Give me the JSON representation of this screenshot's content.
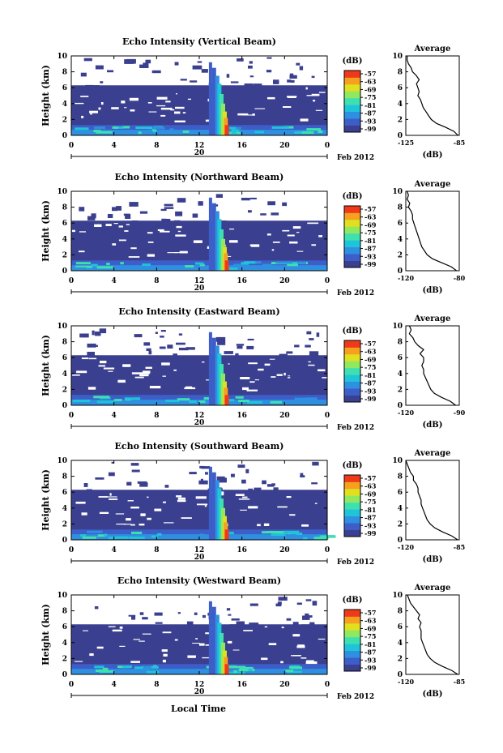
{
  "figure": {
    "date_label": "Feb 2012",
    "xlabel": "Local Time",
    "colors": {
      "background": "#3a3f8f",
      "ramp": [
        "#3a3f8f",
        "#3d5ec8",
        "#2f8fe0",
        "#1fc4d8",
        "#3fe0b0",
        "#8fe860",
        "#e0e020",
        "#f6a020",
        "#ef3a1a"
      ]
    }
  },
  "chart_data": [
    {
      "type": "heatmap",
      "title": "Echo Intensity (Vertical Beam)",
      "ylabel": "Height (km)",
      "xlim": [
        0,
        24
      ],
      "ylim": [
        0,
        10
      ],
      "xticks": [
        "0",
        "4",
        "8",
        "12",
        "16",
        "20",
        "0"
      ],
      "yticks": [
        "0",
        "2",
        "4",
        "6",
        "8",
        "10"
      ],
      "day_label": "20",
      "colorbar": {
        "unit": "(dB)",
        "ticks": [
          "-57",
          "-63",
          "-69",
          "-75",
          "-81",
          "-87",
          "-93",
          "-99"
        ]
      },
      "profile": {
        "title": "Average",
        "xlabel": "(dB)",
        "xlim": [
          -125,
          -85
        ],
        "xticks": [
          "-125",
          "-85"
        ],
        "yticks": [
          "0",
          "2",
          "4",
          "6",
          "8",
          "10"
        ],
        "points": [
          [
            -86,
            0
          ],
          [
            -89,
            0.5
          ],
          [
            -95,
            1
          ],
          [
            -102,
            1.5
          ],
          [
            -106,
            2
          ],
          [
            -108,
            2.5
          ],
          [
            -110,
            3
          ],
          [
            -112,
            3.5
          ],
          [
            -113,
            4
          ],
          [
            -114,
            4.5
          ],
          [
            -116,
            5
          ],
          [
            -115,
            5.5
          ],
          [
            -116,
            6
          ],
          [
            -117,
            6.5
          ],
          [
            -115,
            7
          ],
          [
            -117,
            7.5
          ],
          [
            -120,
            8
          ],
          [
            -121,
            8.5
          ],
          [
            -123,
            9
          ],
          [
            -124,
            9.5
          ],
          [
            -124,
            10
          ]
        ]
      }
    },
    {
      "type": "heatmap",
      "title": "Echo Intensity (Northward Beam)",
      "ylabel": "Height (km)",
      "xlim": [
        0,
        24
      ],
      "ylim": [
        0,
        10
      ],
      "xticks": [
        "0",
        "4",
        "8",
        "12",
        "16",
        "20",
        "0"
      ],
      "yticks": [
        "0",
        "2",
        "4",
        "6",
        "8",
        "10"
      ],
      "day_label": "20",
      "colorbar": {
        "unit": "(dB)",
        "ticks": [
          "-57",
          "-63",
          "-69",
          "-75",
          "-81",
          "-87",
          "-93",
          "-99"
        ]
      },
      "profile": {
        "title": "Average",
        "xlabel": "(dB)",
        "xlim": [
          -120,
          -80
        ],
        "xticks": [
          "-120",
          "-80"
        ],
        "yticks": [
          "0",
          "2",
          "4",
          "6",
          "8",
          "10"
        ],
        "points": [
          [
            -82,
            0
          ],
          [
            -86,
            0.5
          ],
          [
            -93,
            1
          ],
          [
            -100,
            1.5
          ],
          [
            -104,
            2
          ],
          [
            -106,
            2.5
          ],
          [
            -108,
            3
          ],
          [
            -109,
            3.5
          ],
          [
            -110,
            4
          ],
          [
            -111,
            4.5
          ],
          [
            -112,
            5
          ],
          [
            -113,
            5.5
          ],
          [
            -114,
            6
          ],
          [
            -115,
            6.5
          ],
          [
            -115,
            7
          ],
          [
            -116,
            7.5
          ],
          [
            -118,
            8
          ],
          [
            -117,
            8.5
          ],
          [
            -119,
            9
          ],
          [
            -118,
            9.5
          ],
          [
            -119,
            10
          ]
        ]
      }
    },
    {
      "type": "heatmap",
      "title": "Echo Intensity (Eastward Beam)",
      "ylabel": "Height (km)",
      "xlim": [
        0,
        24
      ],
      "ylim": [
        0,
        10
      ],
      "xticks": [
        "0",
        "4",
        "8",
        "12",
        "16",
        "20",
        "0"
      ],
      "yticks": [
        "0",
        "2",
        "4",
        "6",
        "8",
        "10"
      ],
      "day_label": "20",
      "colorbar": {
        "unit": "(dB)",
        "ticks": [
          "-57",
          "-63",
          "-69",
          "-75",
          "-81",
          "-87",
          "-93",
          "-99"
        ]
      },
      "profile": {
        "title": "Average",
        "xlabel": "(dB)",
        "xlim": [
          -120,
          -90
        ],
        "xticks": [
          "-120",
          "-90"
        ],
        "yticks": [
          "0",
          "2",
          "4",
          "6",
          "8",
          "10"
        ],
        "points": [
          [
            -92,
            0
          ],
          [
            -95,
            0.5
          ],
          [
            -100,
            1
          ],
          [
            -104,
            1.5
          ],
          [
            -106,
            2
          ],
          [
            -107,
            2.5
          ],
          [
            -108,
            3
          ],
          [
            -109,
            3.5
          ],
          [
            -110,
            4
          ],
          [
            -110,
            4.5
          ],
          [
            -111,
            5
          ],
          [
            -110,
            5.5
          ],
          [
            -110,
            6
          ],
          [
            -112,
            6.5
          ],
          [
            -110,
            7
          ],
          [
            -113,
            7.5
          ],
          [
            -115,
            8
          ],
          [
            -116,
            8.5
          ],
          [
            -118,
            9
          ],
          [
            -117,
            9.5
          ],
          [
            -118,
            10
          ]
        ]
      }
    },
    {
      "type": "heatmap",
      "title": "Echo Intensity (Southward Beam)",
      "ylabel": "Height (km)",
      "xlim": [
        0,
        24
      ],
      "ylim": [
        0,
        10
      ],
      "xticks": [
        "0",
        "4",
        "8",
        "12",
        "16",
        "20",
        "0"
      ],
      "yticks": [
        "0",
        "2",
        "4",
        "6",
        "8",
        "10"
      ],
      "day_label": "20",
      "colorbar": {
        "unit": "(dB)",
        "ticks": [
          "-57",
          "-63",
          "-69",
          "-75",
          "-81",
          "-87",
          "-93",
          "-99"
        ]
      },
      "profile": {
        "title": "Average",
        "xlabel": "(dB)",
        "xlim": [
          -120,
          -85
        ],
        "xticks": [
          "-120",
          "-85"
        ],
        "yticks": [
          "0",
          "2",
          "4",
          "6",
          "8",
          "10"
        ],
        "points": [
          [
            -86,
            0
          ],
          [
            -90,
            0.5
          ],
          [
            -96,
            1
          ],
          [
            -101,
            1.5
          ],
          [
            -104,
            2
          ],
          [
            -106,
            2.5
          ],
          [
            -107,
            3
          ],
          [
            -108,
            3.5
          ],
          [
            -109,
            4
          ],
          [
            -110,
            4.5
          ],
          [
            -110,
            5
          ],
          [
            -111,
            5.5
          ],
          [
            -112,
            6
          ],
          [
            -112,
            6.5
          ],
          [
            -113,
            7
          ],
          [
            -115,
            7.5
          ],
          [
            -115,
            8
          ],
          [
            -117,
            8.5
          ],
          [
            -118,
            9
          ],
          [
            -119,
            9.5
          ],
          [
            -120,
            10
          ]
        ]
      }
    },
    {
      "type": "heatmap",
      "title": "Echo Intensity (Westward Beam)",
      "ylabel": "Height (km)",
      "xlim": [
        0,
        24
      ],
      "ylim": [
        0,
        10
      ],
      "xticks": [
        "0",
        "4",
        "8",
        "12",
        "16",
        "20",
        "0"
      ],
      "yticks": [
        "0",
        "2",
        "4",
        "6",
        "8",
        "10"
      ],
      "day_label": "20",
      "colorbar": {
        "unit": "(dB)",
        "ticks": [
          "-57",
          "-63",
          "-69",
          "-75",
          "-81",
          "-87",
          "-93",
          "-99"
        ]
      },
      "profile": {
        "title": "Average",
        "xlabel": "(dB)",
        "xlim": [
          -120,
          -85
        ],
        "xticks": [
          "-120",
          "-85"
        ],
        "yticks": [
          "0",
          "2",
          "4",
          "6",
          "8",
          "10"
        ],
        "points": [
          [
            -86,
            0
          ],
          [
            -90,
            0.5
          ],
          [
            -96,
            1
          ],
          [
            -101,
            1.5
          ],
          [
            -104,
            2
          ],
          [
            -106,
            2.5
          ],
          [
            -107,
            3
          ],
          [
            -108,
            3.5
          ],
          [
            -109,
            4
          ],
          [
            -110,
            4.5
          ],
          [
            -110,
            5
          ],
          [
            -110,
            5.5
          ],
          [
            -111,
            6
          ],
          [
            -110,
            6.5
          ],
          [
            -112,
            7
          ],
          [
            -111,
            7.5
          ],
          [
            -113,
            8
          ],
          [
            -115,
            8.5
          ],
          [
            -117,
            9
          ],
          [
            -118,
            9.5
          ],
          [
            -119,
            10
          ]
        ]
      }
    }
  ]
}
